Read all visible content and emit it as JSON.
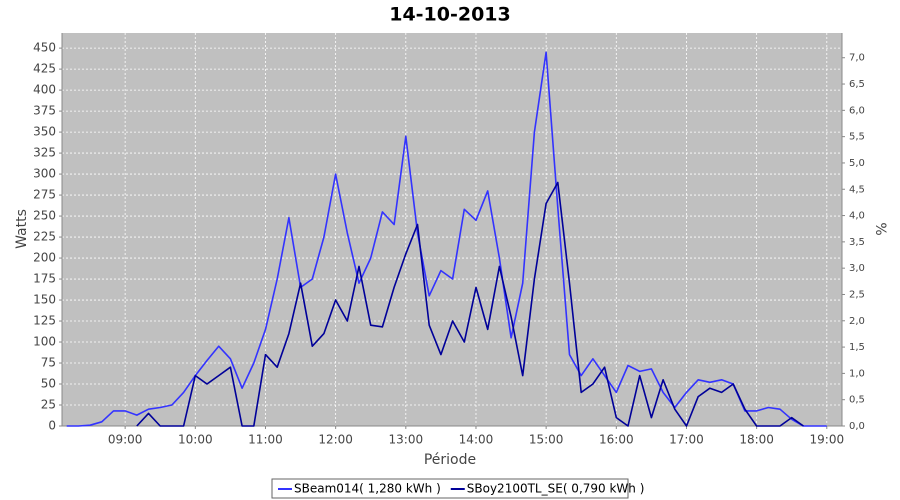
{
  "chart_data": {
    "type": "line",
    "title": "14-10-2013",
    "x_label": "Période",
    "y_label": "Watts",
    "y2_label": "%",
    "x": [
      490,
      500,
      510,
      520,
      530,
      540,
      550,
      560,
      570,
      580,
      590,
      600,
      610,
      620,
      630,
      640,
      650,
      660,
      670,
      680,
      690,
      700,
      710,
      720,
      730,
      740,
      750,
      760,
      770,
      780,
      790,
      800,
      810,
      820,
      830,
      840,
      850,
      860,
      870,
      880,
      890,
      900,
      910,
      920,
      930,
      940,
      950,
      960,
      970,
      980,
      990,
      1000,
      1010,
      1020,
      1030,
      1040,
      1050,
      1060,
      1070,
      1080,
      1090,
      1100,
      1110,
      1120,
      1130,
      1140
    ],
    "series": [
      {
        "name": "SBeam014( 1,280 kWh )",
        "color": "#3333ff",
        "values": [
          0,
          0,
          1,
          5,
          18,
          18,
          13,
          20,
          22,
          25,
          40,
          60,
          78,
          95,
          80,
          45,
          75,
          115,
          175,
          248,
          165,
          175,
          225,
          300,
          230,
          170,
          200,
          255,
          240,
          345,
          230,
          155,
          185,
          175,
          258,
          245,
          280,
          200,
          105,
          170,
          350,
          445,
          260,
          85,
          60,
          80,
          60,
          40,
          72,
          65,
          68,
          40,
          22,
          40,
          55,
          52,
          55,
          50,
          18,
          18,
          22,
          20,
          8,
          0,
          0,
          0
        ]
      },
      {
        "name": "SBoy2100TL_SE( 0,790 kWh )",
        "color": "#000099",
        "values": [
          null,
          null,
          null,
          null,
          null,
          null,
          0,
          15,
          0,
          0,
          0,
          60,
          50,
          60,
          70,
          0,
          0,
          85,
          70,
          110,
          170,
          95,
          110,
          150,
          125,
          190,
          120,
          118,
          165,
          205,
          240,
          120,
          85,
          125,
          100,
          165,
          115,
          190,
          130,
          60,
          175,
          265,
          290,
          170,
          40,
          50,
          70,
          10,
          0,
          60,
          10,
          55,
          20,
          0,
          35,
          45,
          40,
          50,
          20,
          0,
          0,
          0,
          10,
          0,
          null,
          null
        ]
      }
    ],
    "xlim": [
      486,
      1153
    ],
    "xticks": [
      {
        "value": 540,
        "label": "09:00"
      },
      {
        "value": 600,
        "label": "10:00"
      },
      {
        "value": 660,
        "label": "11:00"
      },
      {
        "value": 720,
        "label": "12:00"
      },
      {
        "value": 780,
        "label": "13:00"
      },
      {
        "value": 840,
        "label": "14:00"
      },
      {
        "value": 900,
        "label": "15:00"
      },
      {
        "value": 960,
        "label": "16:00"
      },
      {
        "value": 1020,
        "label": "17:00"
      },
      {
        "value": 1080,
        "label": "18:00"
      },
      {
        "value": 1140,
        "label": "19:00"
      }
    ],
    "ylim": [
      0,
      468
    ],
    "yticks": [
      0,
      25,
      50,
      75,
      100,
      125,
      150,
      175,
      200,
      225,
      250,
      275,
      300,
      325,
      350,
      375,
      400,
      425,
      450
    ],
    "y2lim": [
      0,
      7.47
    ],
    "y2ticks": [
      {
        "value": 0,
        "label": "0,0"
      },
      {
        "value": 0.5,
        "label": "0,5"
      },
      {
        "value": 1,
        "label": "1,0"
      },
      {
        "value": 1.5,
        "label": "1,5"
      },
      {
        "value": 2,
        "label": "2,0"
      },
      {
        "value": 2.5,
        "label": "2,5"
      },
      {
        "value": 3,
        "label": "3,0"
      },
      {
        "value": 3.5,
        "label": "3,5"
      },
      {
        "value": 4,
        "label": "4,0"
      },
      {
        "value": 4.5,
        "label": "4,5"
      },
      {
        "value": 5,
        "label": "5,0"
      },
      {
        "value": 5.5,
        "label": "5,5"
      },
      {
        "value": 6,
        "label": "6,0"
      },
      {
        "value": 6.5,
        "label": "6,5"
      },
      {
        "value": 7,
        "label": "7,0"
      }
    ],
    "grid": true,
    "legend": "bottom"
  }
}
